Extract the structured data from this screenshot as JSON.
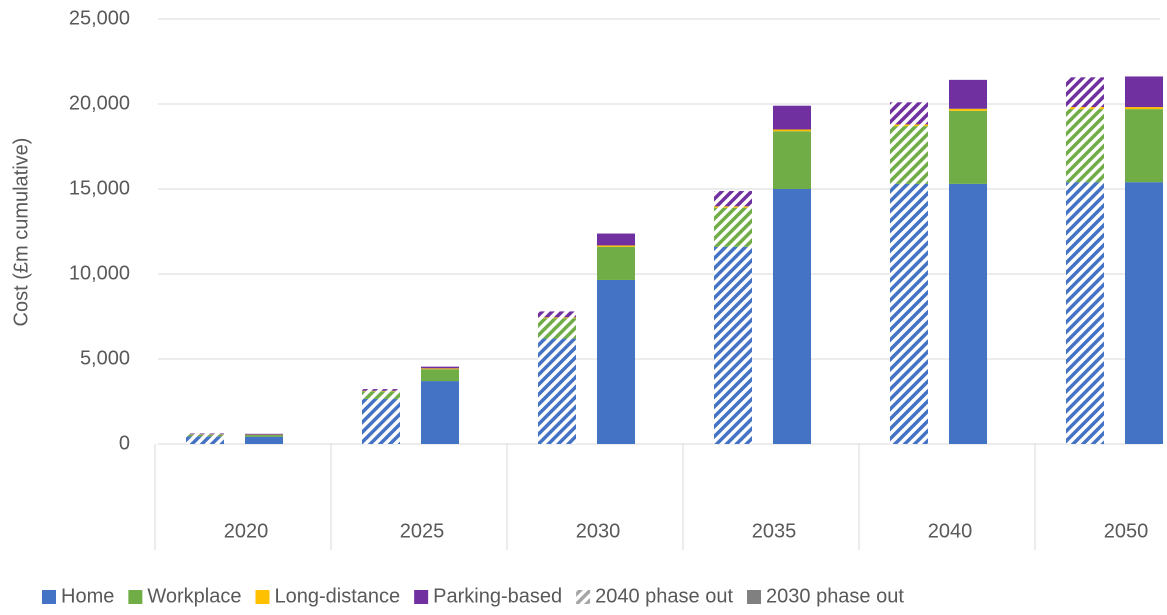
{
  "chart_data": {
    "type": "grouped_stacked_bar",
    "y_label": "Cost (£m cumulative)",
    "categories": [
      "2020",
      "2025",
      "2030",
      "2035",
      "2040",
      "2050"
    ],
    "scenarios": [
      {
        "name": "2040 phase out",
        "pattern": "hatched",
        "color": "#a6a6a6"
      },
      {
        "name": "2030 phase out",
        "pattern": "solid",
        "color": "#808080"
      }
    ],
    "series": [
      {
        "name": "Home",
        "color": "#4472c4",
        "values": [
          [
            450,
            430
          ],
          [
            2650,
            3700
          ],
          [
            6200,
            9650
          ],
          [
            11600,
            15000
          ],
          [
            15300,
            15300
          ],
          [
            15400,
            15400
          ]
        ]
      },
      {
        "name": "Workplace",
        "color": "#70ad47",
        "values": [
          [
            100,
            100
          ],
          [
            450,
            700
          ],
          [
            1200,
            1950
          ],
          [
            2300,
            3400
          ],
          [
            3400,
            4300
          ],
          [
            4300,
            4300
          ]
        ]
      },
      {
        "name": "Long-distance",
        "color": "#ffc000",
        "values": [
          [
            20,
            20
          ],
          [
            30,
            50
          ],
          [
            50,
            80
          ],
          [
            80,
            100
          ],
          [
            100,
            120
          ],
          [
            120,
            120
          ]
        ]
      },
      {
        "name": "Parking-based",
        "color": "#7030a0",
        "values": [
          [
            50,
            50
          ],
          [
            100,
            100
          ],
          [
            350,
            700
          ],
          [
            900,
            1400
          ],
          [
            1300,
            1700
          ],
          [
            1750,
            1800
          ]
        ]
      }
    ],
    "ylim": [
      0,
      25000
    ],
    "yticks": [
      0,
      {
        "value": 5000,
        "label": "5,000"
      },
      {
        "value": 10000,
        "label": "10,000"
      },
      {
        "value": 15000,
        "label": "15,000"
      },
      {
        "value": 20000,
        "label": "20,000"
      },
      {
        "value": 25000,
        "label": "25,000"
      }
    ],
    "grid": true,
    "legend": "bottom"
  }
}
